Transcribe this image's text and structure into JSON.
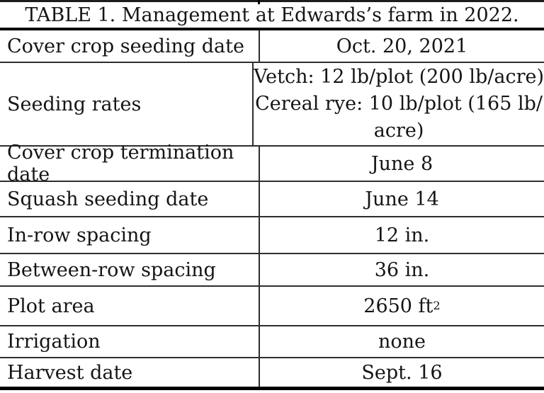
{
  "table": {
    "title": "TABLE 1. Management at Edwards’s farm in 2022.",
    "rows": [
      {
        "label": "Cover crop seeding date",
        "value": "Oct. 20, 2021"
      },
      {
        "label": "Seeding rates",
        "value_lines": [
          "Vetch: 12 lb/plot (200 lb/acre)",
          "Cereal rye: 10 lb/plot (165 lb/",
          "acre)"
        ]
      },
      {
        "label": "Cover crop termination date",
        "value": "June 8"
      },
      {
        "label": "Squash seeding date",
        "value": "June 14"
      },
      {
        "label": "In-row spacing",
        "value": "12 in."
      },
      {
        "label": "Between-row spacing",
        "value": "36 in."
      },
      {
        "label": "Plot area",
        "value": "2650 ft",
        "value_superscript": "2"
      },
      {
        "label": "Irrigation",
        "value": "none"
      },
      {
        "label": "Harvest date",
        "value": "Sept. 16"
      }
    ]
  },
  "colors": {
    "background": "#ffffff",
    "text": "#151515",
    "rule_thin": "#2e2e2e",
    "rule_thick": "#000000"
  }
}
